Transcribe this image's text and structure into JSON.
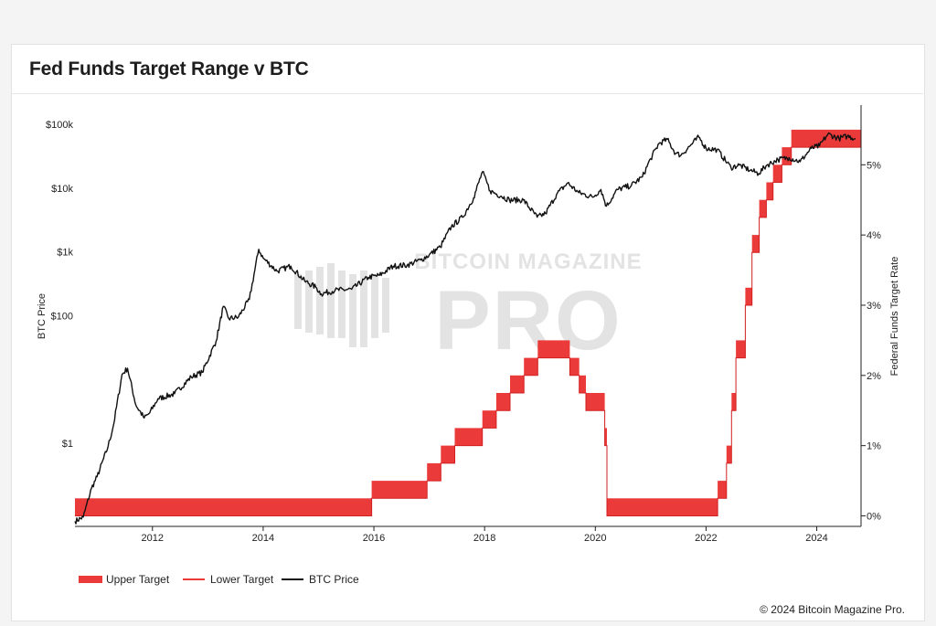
{
  "page": {
    "title": "Fed Funds Target Range v BTC",
    "copyright": "© 2024 Bitcoin Magazine Pro."
  },
  "watermark": {
    "line1": "BITCOIN MAGAZINE",
    "line2": "PRO"
  },
  "colors": {
    "target": "#ea3a3a",
    "btc": "#111111",
    "axis": "#222222",
    "watermark": "#e3e3e3"
  },
  "chart_data": {
    "type": "line",
    "title": "Fed Funds Target Range v BTC",
    "x_axis": {
      "min": 2010.6,
      "max": 2024.8,
      "ticks": [
        2012,
        2014,
        2016,
        2018,
        2020,
        2022,
        2024
      ],
      "tick_labels": [
        "2012",
        "2014",
        "2016",
        "2018",
        "2020",
        "2022",
        "2024"
      ]
    },
    "y_left": {
      "label": "BTC Price",
      "scale": "log",
      "min": 0.05,
      "max": 200000,
      "ticks": [
        1,
        100,
        1000,
        10000,
        100000
      ],
      "tick_labels": [
        "$1",
        "$100",
        "$1k",
        "$10k",
        "$100k"
      ]
    },
    "y_right": {
      "label": "Federal Funds Target Rate",
      "scale": "linear",
      "min": -0.15,
      "max": 5.85,
      "ticks": [
        0,
        1,
        2,
        3,
        4,
        5
      ],
      "tick_labels": [
        "0%",
        "1%",
        "2%",
        "3%",
        "4%",
        "5%"
      ]
    },
    "legend": {
      "position": "bottom-left",
      "items": [
        {
          "label": "Upper Target",
          "style": "bar"
        },
        {
          "label": "Lower Target",
          "style": "line"
        },
        {
          "label": "BTC Price",
          "style": "line"
        }
      ]
    },
    "fed_funds": {
      "dates": [
        2010.6,
        2015.96,
        2016.96,
        2017.21,
        2017.46,
        2017.96,
        2018.21,
        2018.46,
        2018.71,
        2018.96,
        2019.54,
        2019.71,
        2019.83,
        2020.17,
        2020.21,
        2022.21,
        2022.37,
        2022.46,
        2022.54,
        2022.71,
        2022.83,
        2022.96,
        2023.09,
        2023.21,
        2023.37,
        2023.54,
        2024.71,
        2024.8
      ],
      "lower": [
        0.0,
        0.25,
        0.5,
        0.75,
        1.0,
        1.25,
        1.5,
        1.75,
        2.0,
        2.25,
        2.0,
        1.75,
        1.5,
        1.0,
        0.0,
        0.25,
        0.75,
        1.5,
        2.25,
        3.0,
        3.75,
        4.25,
        4.5,
        4.75,
        5.0,
        5.25,
        5.25,
        5.25
      ],
      "upper": [
        0.25,
        0.5,
        0.75,
        1.0,
        1.25,
        1.5,
        1.75,
        2.0,
        2.25,
        2.5,
        2.25,
        2.0,
        1.75,
        1.25,
        0.25,
        0.5,
        1.0,
        1.75,
        2.5,
        3.25,
        4.0,
        4.5,
        4.75,
        5.0,
        5.25,
        5.5,
        5.5,
        5.5
      ]
    },
    "btc_price": {
      "x": [
        2010.6,
        2010.75,
        2010.9,
        2011.0,
        2011.2,
        2011.3,
        2011.45,
        2011.55,
        2011.7,
        2011.85,
        2011.95,
        2012.1,
        2012.4,
        2012.7,
        2012.9,
        2013.15,
        2013.28,
        2013.38,
        2013.55,
        2013.75,
        2013.92,
        2014.0,
        2014.25,
        2014.5,
        2014.75,
        2014.95,
        2015.05,
        2015.3,
        2015.6,
        2015.9,
        2016.1,
        2016.35,
        2016.6,
        2016.85,
        2017.0,
        2017.2,
        2017.4,
        2017.6,
        2017.8,
        2017.96,
        2018.1,
        2018.3,
        2018.45,
        2018.7,
        2018.95,
        2019.1,
        2019.3,
        2019.5,
        2019.7,
        2019.95,
        2020.1,
        2020.2,
        2020.4,
        2020.65,
        2020.85,
        2021.0,
        2021.15,
        2021.3,
        2021.45,
        2021.55,
        2021.7,
        2021.87,
        2022.0,
        2022.2,
        2022.45,
        2022.6,
        2022.8,
        2022.95,
        2023.1,
        2023.3,
        2023.5,
        2023.7,
        2023.9,
        2024.05,
        2024.2,
        2024.4,
        2024.55,
        2024.7
      ],
      "y": [
        0.06,
        0.07,
        0.2,
        0.3,
        0.9,
        2,
        12,
        15,
        4,
        2.5,
        3,
        5,
        6,
        11,
        13,
        40,
        140,
        90,
        95,
        180,
        1100,
        800,
        500,
        600,
        350,
        280,
        220,
        250,
        260,
        400,
        430,
        600,
        620,
        750,
        900,
        1200,
        2500,
        3500,
        7000,
        18000,
        9000,
        7500,
        6500,
        6500,
        3500,
        4000,
        8000,
        12000,
        8500,
        7200,
        9500,
        5200,
        9500,
        11000,
        15000,
        29000,
        50000,
        58000,
        35000,
        33000,
        45000,
        63000,
        42000,
        40000,
        21000,
        23000,
        19000,
        17000,
        23000,
        28000,
        30000,
        26000,
        42000,
        46000,
        70000,
        60000,
        65000,
        60000
      ]
    }
  }
}
